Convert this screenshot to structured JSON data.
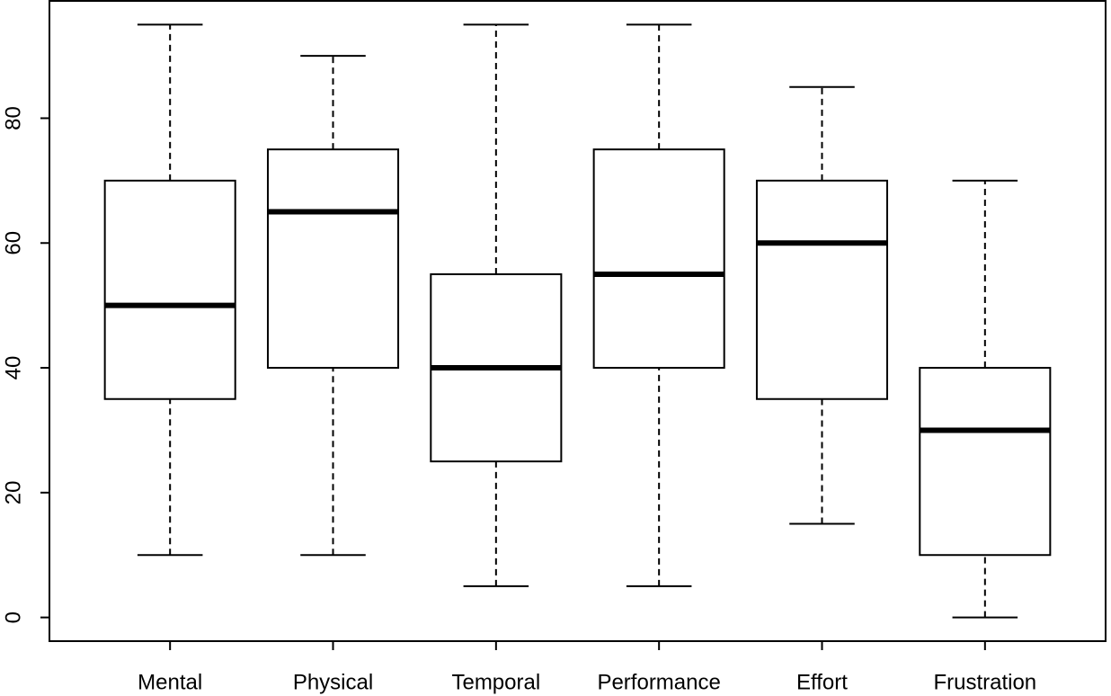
{
  "chart_data": {
    "type": "box",
    "categories": [
      "Mental",
      "Physical",
      "Temporal",
      "Performance",
      "Effort",
      "Frustration"
    ],
    "min": [
      10,
      10,
      5,
      5,
      15,
      0
    ],
    "q1": [
      35,
      40,
      25,
      40,
      35,
      10
    ],
    "median": [
      50,
      65,
      40,
      55,
      60,
      30
    ],
    "q3": [
      70,
      75,
      55,
      75,
      70,
      40
    ],
    "max": [
      95,
      90,
      95,
      95,
      85,
      70
    ],
    "color": "#000000",
    "ylim": [
      -3.8,
      98.8
    ],
    "yticks": [
      0,
      20,
      40,
      60,
      80
    ],
    "grid": false
  }
}
